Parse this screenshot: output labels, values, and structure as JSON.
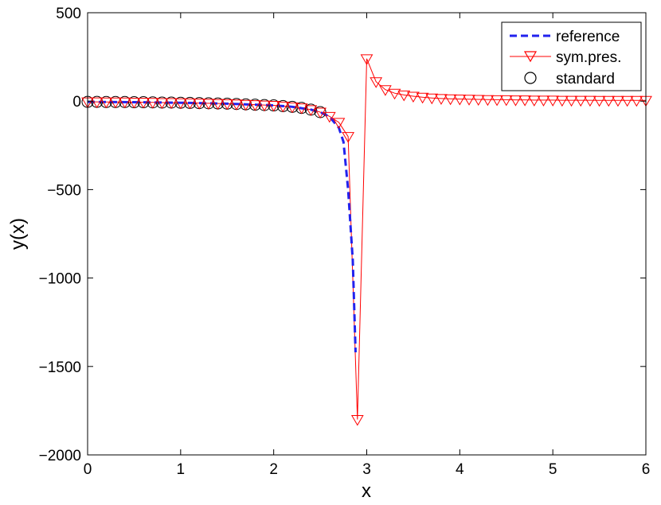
{
  "chart_data": {
    "type": "line",
    "title": "",
    "xlabel": "x",
    "ylabel": "y(x)",
    "xlim": [
      0,
      6
    ],
    "ylim": [
      -2000,
      500
    ],
    "xticks": [
      0,
      1,
      2,
      3,
      4,
      5,
      6
    ],
    "yticks": [
      -2000,
      -1500,
      -1000,
      -500,
      0,
      500
    ],
    "xtick_labels": [
      "0",
      "1",
      "2",
      "3",
      "4",
      "5",
      "6"
    ],
    "ytick_labels": [
      "−2000",
      "−1500",
      "−1000",
      "−500",
      "0",
      "500"
    ],
    "grid": false,
    "legend_position": "top-right",
    "series": [
      {
        "name": "reference",
        "style": "dashed",
        "color": "#2222ee",
        "x": [
          0,
          0.5,
          1.0,
          1.5,
          2.0,
          2.2,
          2.4,
          2.5,
          2.6,
          2.7,
          2.75,
          2.8,
          2.85,
          2.88
        ],
        "y": [
          -4,
          -6,
          -9,
          -14,
          -24,
          -32,
          -48,
          -62,
          -88,
          -150,
          -230,
          -500,
          -900,
          -1420
        ]
      },
      {
        "name": "sym.pres.",
        "style": "solid",
        "marker": "triangle-down",
        "color": "#ff0000",
        "x": [
          0,
          0.1,
          0.2,
          0.3,
          0.4,
          0.5,
          0.6,
          0.7,
          0.8,
          0.9,
          1.0,
          1.1,
          1.2,
          1.3,
          1.4,
          1.5,
          1.6,
          1.7,
          1.8,
          1.9,
          2.0,
          2.1,
          2.2,
          2.3,
          2.4,
          2.5,
          2.6,
          2.7,
          2.8,
          2.9,
          3.0,
          3.1,
          3.2,
          3.3,
          3.4,
          3.5,
          3.6,
          3.7,
          3.8,
          3.9,
          4.0,
          4.1,
          4.2,
          4.3,
          4.4,
          4.5,
          4.6,
          4.7,
          4.8,
          4.9,
          5.0,
          5.1,
          5.2,
          5.3,
          5.4,
          5.5,
          5.6,
          5.7,
          5.8,
          5.9,
          6.0
        ],
        "y": [
          -4,
          -4,
          -5,
          -5,
          -5,
          -6,
          -6,
          -7,
          -8,
          -8,
          -9,
          -10,
          -11,
          -12,
          -13,
          -14,
          -16,
          -18,
          -20,
          -22,
          -24,
          -28,
          -32,
          -38,
          -48,
          -62,
          -86,
          -120,
          -200,
          -1800,
          240,
          110,
          65,
          45,
          35,
          28,
          22,
          18,
          15,
          13,
          12,
          11,
          10,
          9,
          8,
          8,
          7,
          7,
          6,
          6,
          6,
          5,
          5,
          5,
          5,
          4,
          4,
          4,
          4,
          4,
          4
        ]
      },
      {
        "name": "standard",
        "style": "none",
        "marker": "circle",
        "color": "#000000",
        "x": [
          0,
          0.1,
          0.2,
          0.3,
          0.4,
          0.5,
          0.6,
          0.7,
          0.8,
          0.9,
          1.0,
          1.1,
          1.2,
          1.3,
          1.4,
          1.5,
          1.6,
          1.7,
          1.8,
          1.9,
          2.0,
          2.1,
          2.2,
          2.3,
          2.4,
          2.5
        ],
        "y": [
          -4,
          -4,
          -5,
          -5,
          -5,
          -6,
          -6,
          -7,
          -8,
          -8,
          -9,
          -10,
          -11,
          -12,
          -13,
          -14,
          -16,
          -18,
          -20,
          -22,
          -24,
          -28,
          -32,
          -38,
          -48,
          -62
        ]
      }
    ]
  }
}
